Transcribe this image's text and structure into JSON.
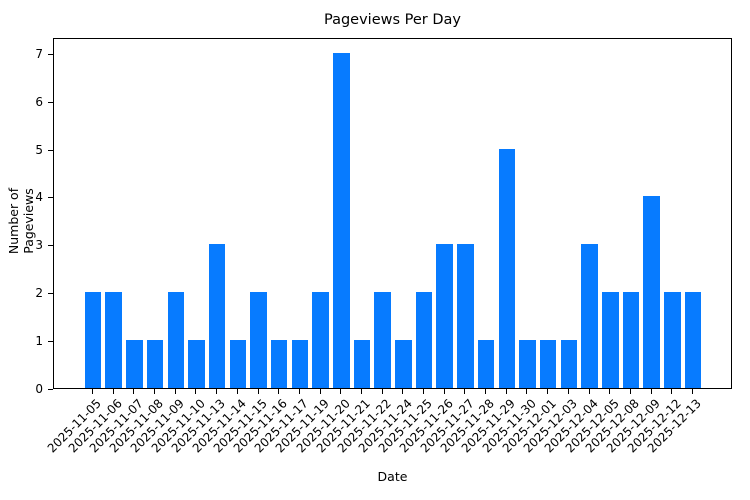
{
  "chart_data": {
    "type": "bar",
    "title": "Pageviews Per Day",
    "xlabel": "Date",
    "ylabel": "Number of Pageviews",
    "categories": [
      "2025-11-05",
      "2025-11-06",
      "2025-11-07",
      "2025-11-08",
      "2025-11-09",
      "2025-11-10",
      "2025-11-13",
      "2025-11-14",
      "2025-11-15",
      "2025-11-16",
      "2025-11-17",
      "2025-11-19",
      "2025-11-20",
      "2025-11-21",
      "2025-11-22",
      "2025-11-24",
      "2025-11-25",
      "2025-11-26",
      "2025-11-27",
      "2025-11-28",
      "2025-11-29",
      "2025-11-30",
      "2025-12-01",
      "2025-12-03",
      "2025-12-04",
      "2025-12-05",
      "2025-12-08",
      "2025-12-09",
      "2025-12-12",
      "2025-12-13"
    ],
    "values": [
      2,
      2,
      1,
      1,
      2,
      1,
      3,
      1,
      2,
      1,
      1,
      2,
      7,
      1,
      2,
      1,
      2,
      3,
      3,
      1,
      5,
      1,
      1,
      1,
      3,
      2,
      2,
      4,
      2,
      2
    ],
    "yticks": [
      "0",
      "1",
      "2",
      "3",
      "4",
      "5",
      "6",
      "7"
    ],
    "ylim": [
      0,
      7.35
    ],
    "bar_color": "#077bff",
    "grid": false,
    "legend": null
  }
}
